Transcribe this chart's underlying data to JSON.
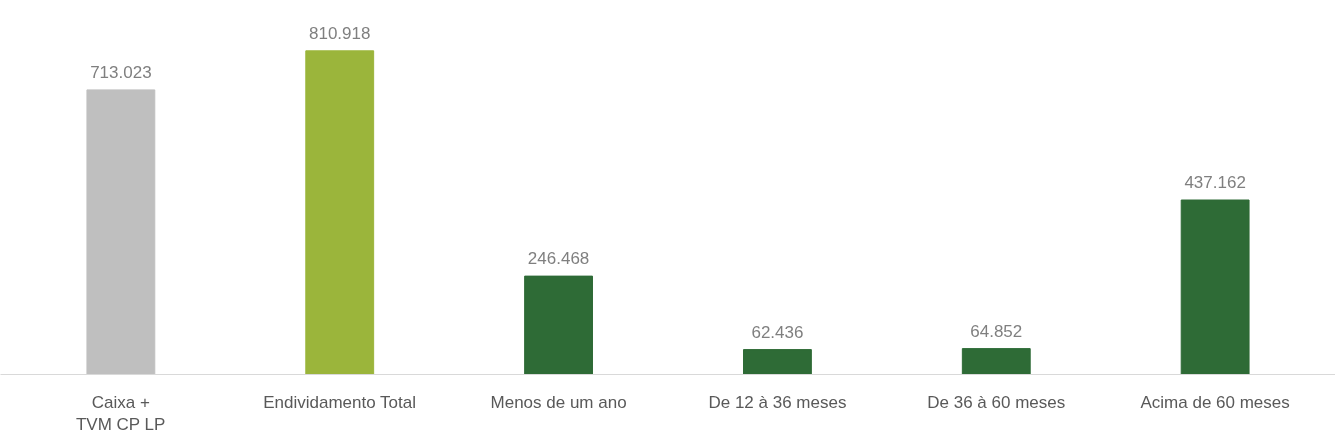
{
  "chart_data": {
    "type": "bar",
    "categories": [
      "Caixa +\nTVM CP LP",
      "Endividamento Total",
      "Menos de um ano",
      "De 12 à 36 meses",
      "De 36 à 60 meses",
      "Acima de 60 meses"
    ],
    "values": [
      713023,
      810918,
      246468,
      62436,
      64852,
      437162
    ],
    "colors": [
      "#bfbfbf",
      "#9bb53b",
      "#2e6b36",
      "#2e6b36",
      "#2e6b36",
      "#2e6b36"
    ],
    "value_labels": [
      "713.023",
      "810.918",
      "246.468",
      "62.436",
      "64.852",
      "437.162"
    ]
  }
}
